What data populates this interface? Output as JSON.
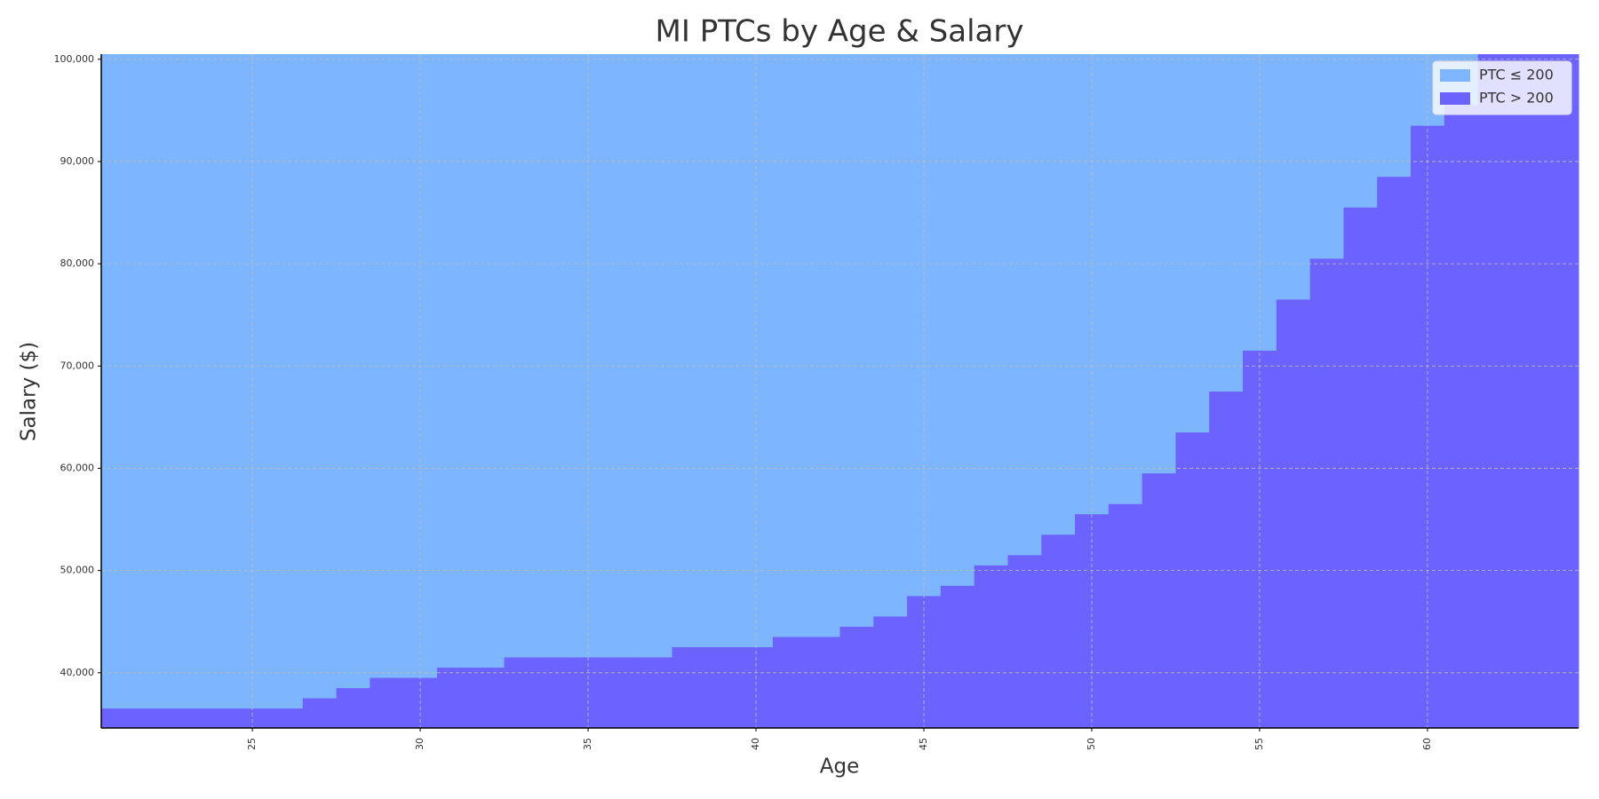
{
  "chart_data": {
    "type": "step_area",
    "title": "MI PTCs by Age & Salary",
    "x_label": "Age",
    "y_label": "Salary ($)",
    "x": [
      21,
      22,
      23,
      24,
      25,
      26,
      27,
      28,
      29,
      30,
      31,
      32,
      33,
      34,
      35,
      36,
      37,
      38,
      39,
      40,
      41,
      42,
      43,
      44,
      45,
      46,
      47,
      48,
      49,
      50,
      51,
      52,
      53,
      54,
      55,
      56,
      57,
      58,
      59,
      60,
      61,
      62,
      63,
      64
    ],
    "series": [
      {
        "name": "PTC ≤ 200",
        "color": "#7eb5ff"
      },
      {
        "name": "PTC > 200",
        "color": "#6c63ff",
        "values": [
          36500,
          36500,
          36500,
          36500,
          36500,
          36500,
          37500,
          38500,
          39500,
          39500,
          40500,
          40500,
          41500,
          41500,
          41500,
          41500,
          41500,
          42500,
          42500,
          42500,
          43500,
          43500,
          44500,
          45500,
          47500,
          48500,
          50500,
          51500,
          53500,
          55500,
          56500,
          59500,
          63500,
          67500,
          71500,
          76500,
          80500,
          85500,
          88500,
          93500,
          95500,
          100500,
          100500,
          100500
        ]
      }
    ],
    "xlim": [
      20.5,
      64.5
    ],
    "ylim": [
      34600,
      100500
    ],
    "xticks": [
      25,
      30,
      35,
      40,
      45,
      50,
      55,
      60
    ],
    "yticks": [
      {
        "value": 40000,
        "label": "40,000"
      },
      {
        "value": 50000,
        "label": "50,000"
      },
      {
        "value": 60000,
        "label": "60,000"
      },
      {
        "value": 70000,
        "label": "70,000"
      },
      {
        "value": 80000,
        "label": "80,000"
      },
      {
        "value": 90000,
        "label": "90,000"
      },
      {
        "value": 100000,
        "label": "100,000"
      }
    ],
    "grid": true,
    "legend": "upper right"
  }
}
